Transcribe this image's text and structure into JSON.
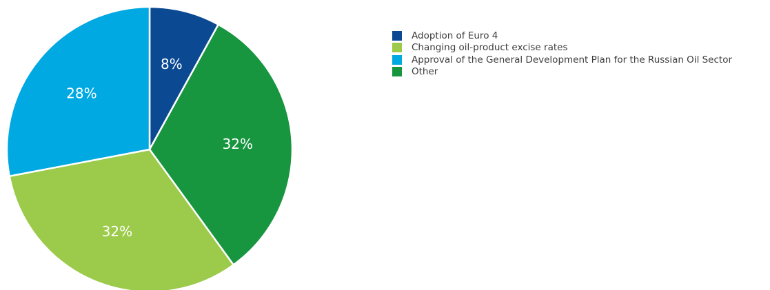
{
  "chart_data": {
    "type": "pie",
    "title": "",
    "slices": [
      {
        "label": "Adoption of Euro 4",
        "value": 8,
        "display": "8%",
        "color": "#0b4a93"
      },
      {
        "label": "Other",
        "value": 32,
        "display": "32%",
        "color": "#17953f"
      },
      {
        "label": "Changing oil-product excise rates",
        "value": 32,
        "display": "32%",
        "color": "#9cca4a"
      },
      {
        "label": "Approval of the General Development Plan for the Russian Oil Sector",
        "value": 28,
        "display": "28%",
        "color": "#01a9e3"
      }
    ],
    "legend": {
      "placement": "right",
      "entries": [
        {
          "label": "Adoption of Euro 4",
          "color": "#0b4a93"
        },
        {
          "label": "Changing oil-product excise rates",
          "color": "#9cca4a"
        },
        {
          "label": "Approval of the General Development Plan for the Russian Oil Sector",
          "color": "#01a9e3"
        },
        {
          "label": "Other",
          "color": "#17953f"
        }
      ]
    }
  }
}
